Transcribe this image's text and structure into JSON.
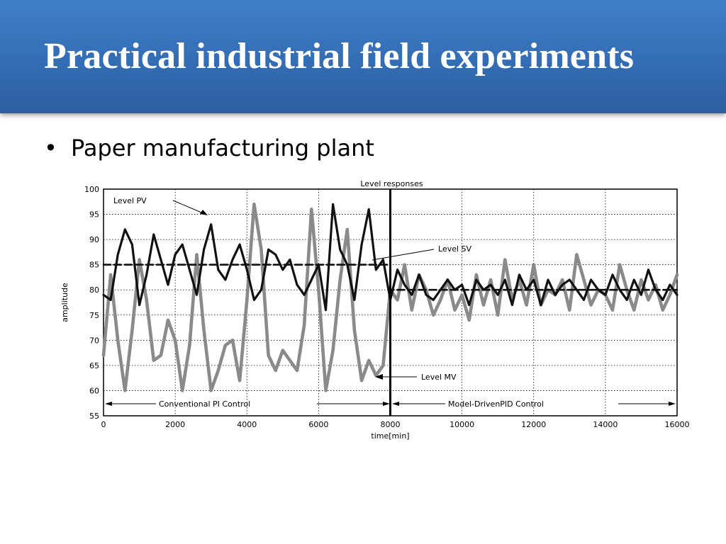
{
  "slide": {
    "title": "Practical industrial field experiments",
    "bullet_symbol": "•",
    "bullet_text": "Paper manufacturing plant"
  },
  "chart_data": {
    "type": "line",
    "title": "Level responses",
    "xlabel": "time[min]",
    "ylabel": "amplitude",
    "xlim": [
      0,
      16000
    ],
    "ylim": [
      55,
      100
    ],
    "x_ticks": [
      0,
      2000,
      4000,
      6000,
      8000,
      10000,
      12000,
      14000,
      16000
    ],
    "y_ticks": [
      55,
      60,
      65,
      70,
      75,
      80,
      85,
      90,
      95,
      100
    ],
    "grid": "dotted",
    "colors": {
      "pv": "#111111",
      "mv": "#8a8a8a",
      "sv": "#111111"
    },
    "divider_x": 8000,
    "series": [
      {
        "name": "Level PV",
        "color": "#111111",
        "x": [
          0,
          200,
          400,
          600,
          800,
          1000,
          1200,
          1400,
          1600,
          1800,
          2000,
          2200,
          2400,
          2600,
          2800,
          3000,
          3200,
          3400,
          3600,
          3800,
          4000,
          4200,
          4400,
          4600,
          4800,
          5000,
          5200,
          5400,
          5600,
          5800,
          6000,
          6200,
          6400,
          6600,
          6800,
          7000,
          7200,
          7400,
          7600,
          7800,
          8000,
          8200,
          8400,
          8600,
          8800,
          9000,
          9200,
          9400,
          9600,
          9800,
          10000,
          10200,
          10400,
          10600,
          10800,
          11000,
          11200,
          11400,
          11600,
          11800,
          12000,
          12200,
          12400,
          12600,
          12800,
          13000,
          13200,
          13400,
          13600,
          13800,
          14000,
          14200,
          14400,
          14600,
          14800,
          15000,
          15200,
          15400,
          15600,
          15800,
          16000
        ],
        "values": [
          79,
          78,
          87,
          92,
          89,
          77,
          83,
          91,
          86,
          81,
          87,
          89,
          84,
          79,
          88,
          93,
          84,
          82,
          86,
          89,
          84,
          78,
          80,
          88,
          87,
          84,
          86,
          81,
          79,
          82,
          85,
          76,
          97,
          88,
          85,
          78,
          89,
          96,
          84,
          86,
          78,
          84,
          81,
          79,
          83,
          79,
          78,
          80,
          82,
          80,
          81,
          77,
          82,
          80,
          81,
          79,
          82,
          77,
          83,
          80,
          82,
          77,
          82,
          79,
          81,
          82,
          80,
          78,
          82,
          80,
          79,
          83,
          80,
          78,
          82,
          79,
          84,
          80,
          78,
          81,
          79
        ]
      },
      {
        "name": "Level MV",
        "color": "#8a8a8a",
        "x": [
          0,
          200,
          400,
          600,
          800,
          1000,
          1200,
          1400,
          1600,
          1800,
          2000,
          2200,
          2400,
          2600,
          2800,
          3000,
          3200,
          3400,
          3600,
          3800,
          4000,
          4200,
          4400,
          4600,
          4800,
          5000,
          5200,
          5400,
          5600,
          5800,
          6000,
          6200,
          6400,
          6600,
          6800,
          7000,
          7200,
          7400,
          7600,
          7800,
          8000,
          8200,
          8400,
          8600,
          8800,
          9000,
          9200,
          9400,
          9600,
          9800,
          10000,
          10200,
          10400,
          10600,
          10800,
          11000,
          11200,
          11400,
          11600,
          11800,
          12000,
          12200,
          12400,
          12600,
          12800,
          13000,
          13200,
          13400,
          13600,
          13800,
          14000,
          14200,
          14400,
          14600,
          14800,
          15000,
          15200,
          15400,
          15600,
          15800,
          16000
        ],
        "values": [
          67,
          83,
          70,
          60,
          72,
          86,
          78,
          66,
          67,
          74,
          70,
          60,
          69,
          87,
          72,
          60,
          64,
          69,
          70,
          62,
          78,
          97,
          88,
          67,
          64,
          68,
          66,
          64,
          73,
          96,
          80,
          60,
          68,
          82,
          92,
          72,
          62,
          66,
          63,
          65,
          80,
          78,
          85,
          76,
          83,
          80,
          75,
          78,
          82,
          76,
          79,
          74,
          83,
          77,
          82,
          75,
          86,
          78,
          82,
          77,
          85,
          77,
          80,
          79,
          82,
          76,
          87,
          82,
          77,
          80,
          79,
          76,
          85,
          80,
          76,
          82,
          78,
          81,
          76,
          79,
          83
        ]
      },
      {
        "name": "Level SV",
        "color": "#111111",
        "dashed": true,
        "x": [
          0,
          8000,
          8000,
          16000
        ],
        "values": [
          85,
          85,
          80,
          80
        ]
      }
    ],
    "annotations": [
      {
        "text": "Level PV"
      },
      {
        "text": "Level SV"
      },
      {
        "text": "Level MV"
      },
      {
        "text": "Conventional PI Control"
      },
      {
        "text": "Model-DrivenPID Control"
      }
    ]
  }
}
